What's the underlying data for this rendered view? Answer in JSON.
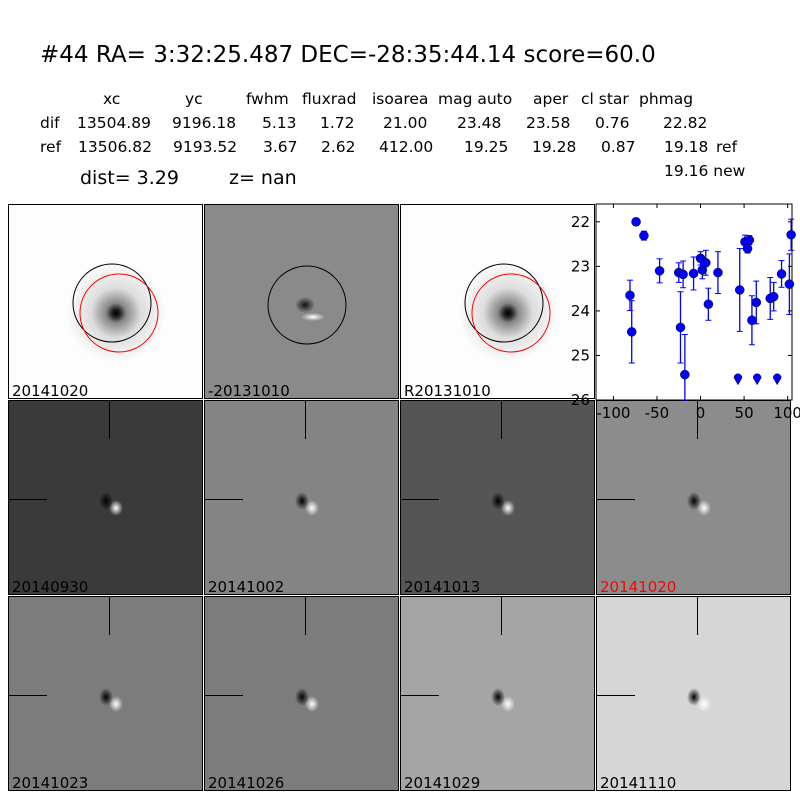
{
  "header": {
    "title": "#44   RA= 3:32:25.487 DEC=-28:35:44.14      score=60.0"
  },
  "table": {
    "columns": [
      "xc",
      "yc",
      "fwhm",
      "fluxrad",
      "isoarea",
      "mag auto",
      "aper",
      "cl star",
      "phmag"
    ],
    "rows": [
      {
        "label": "dif",
        "values": [
          "13504.89",
          "9196.18",
          "5.13",
          "1.72",
          "21.00",
          "23.48",
          "23.58",
          "0.76",
          "22.82"
        ],
        "suffix": ""
      },
      {
        "label": "ref",
        "values": [
          "13506.82",
          "9193.52",
          "3.67",
          "2.62",
          "412.00",
          "19.25",
          "19.28",
          "0.87",
          "19.18"
        ],
        "suffix": "ref"
      }
    ],
    "new_phmag": "19.16 new",
    "dist": "dist=  3.29",
    "z": "z=   nan"
  },
  "stamps": [
    {
      "label": "20141020",
      "kind": "new",
      "label_color": "#000000"
    },
    {
      "label": "-20131010",
      "kind": "diff",
      "label_color": "#000000"
    },
    {
      "label": "R20131010",
      "kind": "ref",
      "label_color": "#000000"
    },
    {
      "label": "20140930",
      "kind": "dark",
      "label_color": "#000000"
    },
    {
      "label": "20141002",
      "kind": "mid",
      "label_color": "#000000"
    },
    {
      "label": "20141013",
      "kind": "dark2",
      "label_color": "#000000"
    },
    {
      "label": "20141020",
      "kind": "mid2",
      "label_color": "#ff0000"
    },
    {
      "label": "20141023",
      "kind": "mid3",
      "label_color": "#000000"
    },
    {
      "label": "20141026",
      "kind": "mid3",
      "label_color": "#000000"
    },
    {
      "label": "20141029",
      "kind": "light",
      "label_color": "#000000"
    },
    {
      "label": "20141110",
      "kind": "vlight",
      "label_color": "#000000"
    }
  ],
  "chart_data": {
    "type": "scatter",
    "xlim": [
      -120,
      105
    ],
    "ylim": [
      26,
      21.6
    ],
    "xticks": [
      "-100",
      "-50",
      "0",
      "50",
      "100"
    ],
    "xtick_values": [
      -100,
      -50,
      0,
      50,
      100
    ],
    "yticks": [
      "22",
      "23",
      "24",
      "25",
      "26"
    ],
    "ytick_values": [
      22,
      23,
      24,
      25,
      26
    ],
    "color": "#0000ff",
    "points": [
      {
        "x": -81,
        "y": 23.65,
        "err": 0.34
      },
      {
        "x": -79,
        "y": 24.47,
        "err": 0.7
      },
      {
        "x": -74,
        "y": 22.0,
        "err": 0.08
      },
      {
        "x": -65,
        "y": 22.31,
        "err": 0.1
      },
      {
        "x": -47,
        "y": 23.1,
        "err": 0.27
      },
      {
        "x": -25,
        "y": 23.14,
        "err": 0.22
      },
      {
        "x": -23,
        "y": 24.37,
        "err": 0.8
      },
      {
        "x": -20,
        "y": 23.18,
        "err": 0.3
      },
      {
        "x": -18,
        "y": 25.43,
        "err": 0.9
      },
      {
        "x": -8,
        "y": 23.16,
        "err": 0.37
      },
      {
        "x": 0,
        "y": 22.82,
        "err": 0.15
      },
      {
        "x": 2,
        "y": 23.08,
        "err": 0.2
      },
      {
        "x": 6,
        "y": 22.92,
        "err": 0.28
      },
      {
        "x": 9,
        "y": 23.85,
        "err": 0.36
      },
      {
        "x": 20,
        "y": 23.14,
        "err": 0.47
      },
      {
        "x": 45,
        "y": 23.53,
        "err": 0.93
      },
      {
        "x": 51,
        "y": 22.45,
        "err": 0.15
      },
      {
        "x": 54,
        "y": 22.6,
        "err": 0.1
      },
      {
        "x": 56,
        "y": 22.41,
        "err": 0.1
      },
      {
        "x": 59,
        "y": 24.21,
        "err": 0.55
      },
      {
        "x": 64,
        "y": 23.81,
        "err": 0.48
      },
      {
        "x": 80,
        "y": 23.72,
        "err": 0.47
      },
      {
        "x": 84,
        "y": 23.68,
        "err": 0.32
      },
      {
        "x": 93,
        "y": 23.17,
        "err": 0.3
      },
      {
        "x": 102,
        "y": 23.4,
        "err": 0.68
      },
      {
        "x": 104,
        "y": 22.29,
        "err": 0.35
      }
    ],
    "upper_limits": [
      {
        "x": 43,
        "y": 25.5
      },
      {
        "x": 65,
        "y": 25.5
      },
      {
        "x": 88,
        "y": 25.5
      }
    ]
  }
}
